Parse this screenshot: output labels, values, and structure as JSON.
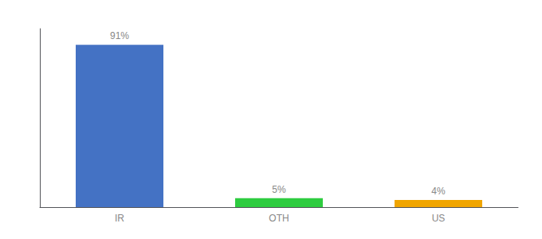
{
  "chart_data": {
    "type": "bar",
    "categories": [
      "IR",
      "OTH",
      "US"
    ],
    "values": [
      91,
      5,
      4
    ],
    "value_labels": [
      "91%",
      "5%",
      "4%"
    ],
    "data_labels": true,
    "colors": [
      "#4472c4",
      "#2ecc40",
      "#f0a500"
    ],
    "ylim": [
      0,
      100
    ],
    "grid": false,
    "tick_labels": "x"
  }
}
